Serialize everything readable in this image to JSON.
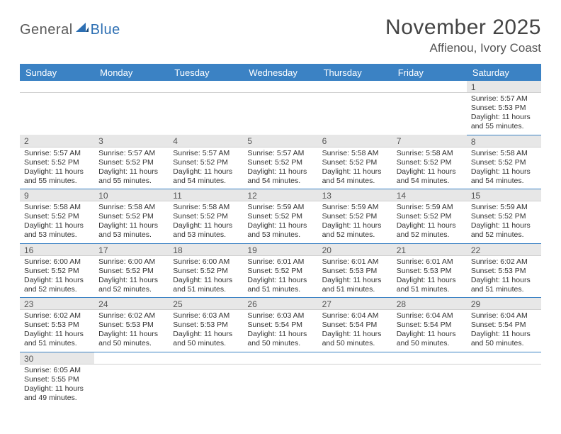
{
  "brand": {
    "part1": "General",
    "part2": "Blue"
  },
  "title": "November 2025",
  "location": "Affienou, Ivory Coast",
  "colors": {
    "headerBar": "#3b82c4",
    "headerText": "#ffffff",
    "dayNumBg": "#e7e7e7",
    "rowDivider": "#3b82c4",
    "brandBlue": "#2d6fb3",
    "bodyText": "#333333",
    "pageBg": "#ffffff"
  },
  "typography": {
    "titleSize": 30,
    "locationSize": 17,
    "dayHeaderSize": 13,
    "dayNumSize": 12,
    "entrySize": 10.5,
    "family": "Arial"
  },
  "dayNames": [
    "Sunday",
    "Monday",
    "Tuesday",
    "Wednesday",
    "Thursday",
    "Friday",
    "Saturday"
  ],
  "weeks": [
    [
      null,
      null,
      null,
      null,
      null,
      null,
      {
        "n": "1",
        "sr": "5:57 AM",
        "ss": "5:53 PM",
        "dl": "11 hours and 55 minutes."
      }
    ],
    [
      {
        "n": "2",
        "sr": "5:57 AM",
        "ss": "5:52 PM",
        "dl": "11 hours and 55 minutes."
      },
      {
        "n": "3",
        "sr": "5:57 AM",
        "ss": "5:52 PM",
        "dl": "11 hours and 55 minutes."
      },
      {
        "n": "4",
        "sr": "5:57 AM",
        "ss": "5:52 PM",
        "dl": "11 hours and 54 minutes."
      },
      {
        "n": "5",
        "sr": "5:57 AM",
        "ss": "5:52 PM",
        "dl": "11 hours and 54 minutes."
      },
      {
        "n": "6",
        "sr": "5:58 AM",
        "ss": "5:52 PM",
        "dl": "11 hours and 54 minutes."
      },
      {
        "n": "7",
        "sr": "5:58 AM",
        "ss": "5:52 PM",
        "dl": "11 hours and 54 minutes."
      },
      {
        "n": "8",
        "sr": "5:58 AM",
        "ss": "5:52 PM",
        "dl": "11 hours and 54 minutes."
      }
    ],
    [
      {
        "n": "9",
        "sr": "5:58 AM",
        "ss": "5:52 PM",
        "dl": "11 hours and 53 minutes."
      },
      {
        "n": "10",
        "sr": "5:58 AM",
        "ss": "5:52 PM",
        "dl": "11 hours and 53 minutes."
      },
      {
        "n": "11",
        "sr": "5:58 AM",
        "ss": "5:52 PM",
        "dl": "11 hours and 53 minutes."
      },
      {
        "n": "12",
        "sr": "5:59 AM",
        "ss": "5:52 PM",
        "dl": "11 hours and 53 minutes."
      },
      {
        "n": "13",
        "sr": "5:59 AM",
        "ss": "5:52 PM",
        "dl": "11 hours and 52 minutes."
      },
      {
        "n": "14",
        "sr": "5:59 AM",
        "ss": "5:52 PM",
        "dl": "11 hours and 52 minutes."
      },
      {
        "n": "15",
        "sr": "5:59 AM",
        "ss": "5:52 PM",
        "dl": "11 hours and 52 minutes."
      }
    ],
    [
      {
        "n": "16",
        "sr": "6:00 AM",
        "ss": "5:52 PM",
        "dl": "11 hours and 52 minutes."
      },
      {
        "n": "17",
        "sr": "6:00 AM",
        "ss": "5:52 PM",
        "dl": "11 hours and 52 minutes."
      },
      {
        "n": "18",
        "sr": "6:00 AM",
        "ss": "5:52 PM",
        "dl": "11 hours and 51 minutes."
      },
      {
        "n": "19",
        "sr": "6:01 AM",
        "ss": "5:52 PM",
        "dl": "11 hours and 51 minutes."
      },
      {
        "n": "20",
        "sr": "6:01 AM",
        "ss": "5:53 PM",
        "dl": "11 hours and 51 minutes."
      },
      {
        "n": "21",
        "sr": "6:01 AM",
        "ss": "5:53 PM",
        "dl": "11 hours and 51 minutes."
      },
      {
        "n": "22",
        "sr": "6:02 AM",
        "ss": "5:53 PM",
        "dl": "11 hours and 51 minutes."
      }
    ],
    [
      {
        "n": "23",
        "sr": "6:02 AM",
        "ss": "5:53 PM",
        "dl": "11 hours and 51 minutes."
      },
      {
        "n": "24",
        "sr": "6:02 AM",
        "ss": "5:53 PM",
        "dl": "11 hours and 50 minutes."
      },
      {
        "n": "25",
        "sr": "6:03 AM",
        "ss": "5:53 PM",
        "dl": "11 hours and 50 minutes."
      },
      {
        "n": "26",
        "sr": "6:03 AM",
        "ss": "5:54 PM",
        "dl": "11 hours and 50 minutes."
      },
      {
        "n": "27",
        "sr": "6:04 AM",
        "ss": "5:54 PM",
        "dl": "11 hours and 50 minutes."
      },
      {
        "n": "28",
        "sr": "6:04 AM",
        "ss": "5:54 PM",
        "dl": "11 hours and 50 minutes."
      },
      {
        "n": "29",
        "sr": "6:04 AM",
        "ss": "5:54 PM",
        "dl": "11 hours and 50 minutes."
      }
    ],
    [
      {
        "n": "30",
        "sr": "6:05 AM",
        "ss": "5:55 PM",
        "dl": "11 hours and 49 minutes."
      },
      null,
      null,
      null,
      null,
      null,
      null
    ]
  ],
  "labels": {
    "sunrise": "Sunrise:",
    "sunset": "Sunset:",
    "daylight": "Daylight:"
  }
}
